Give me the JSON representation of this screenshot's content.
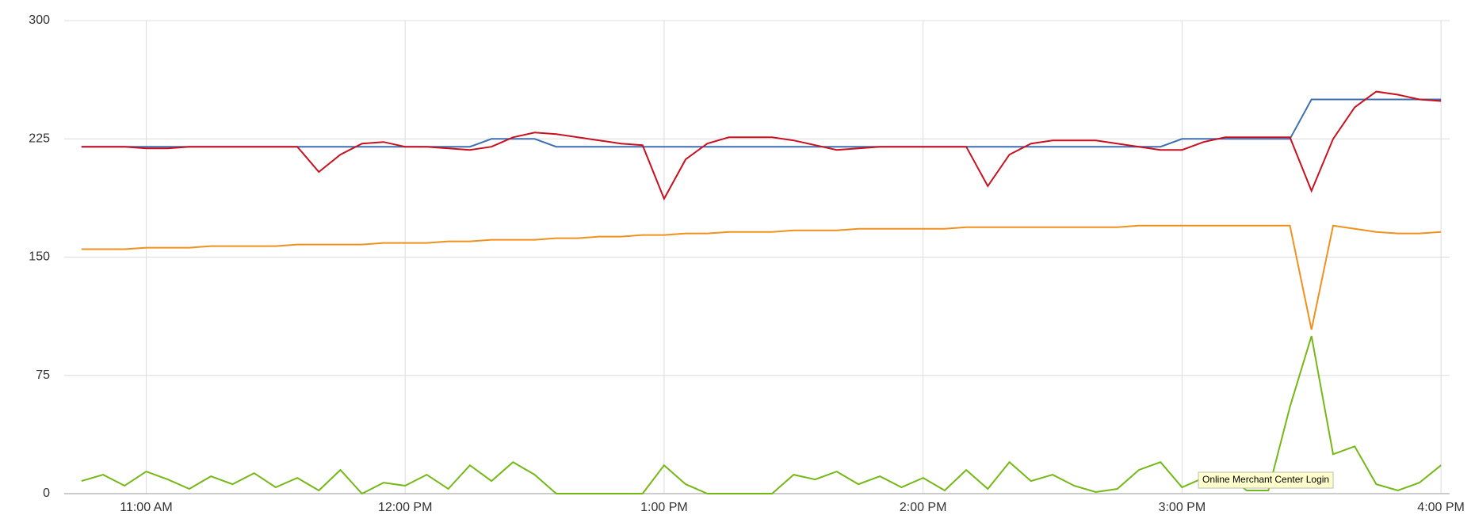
{
  "chart_data": {
    "type": "line",
    "annotation": "Online Merchant Center Login",
    "x": [
      645,
      650,
      655,
      660,
      665,
      670,
      675,
      680,
      685,
      690,
      695,
      700,
      705,
      710,
      715,
      720,
      725,
      730,
      735,
      740,
      745,
      750,
      755,
      760,
      765,
      770,
      775,
      780,
      785,
      790,
      795,
      800,
      805,
      810,
      815,
      820,
      825,
      830,
      835,
      840,
      845,
      850,
      855,
      860,
      865,
      870,
      875,
      880,
      885,
      890,
      895,
      900,
      905,
      910,
      915,
      920,
      925,
      930,
      935,
      940,
      945,
      950,
      955,
      960
    ],
    "series": [
      {
        "color": "#3d6fb0",
        "values": [
          220,
          220,
          220,
          220,
          220,
          220,
          220,
          220,
          220,
          220,
          220,
          220,
          220,
          220,
          220,
          220,
          220,
          220,
          220,
          225,
          225,
          225,
          220,
          220,
          220,
          220,
          220,
          220,
          220,
          220,
          220,
          220,
          220,
          220,
          220,
          220,
          220,
          220,
          220,
          220,
          220,
          220,
          220,
          220,
          220,
          220,
          220,
          220,
          220,
          220,
          220,
          225,
          225,
          225,
          225,
          225,
          225,
          250,
          250,
          250,
          250,
          250,
          250,
          250
        ]
      },
      {
        "color": "#c8101e",
        "values": [
          220,
          220,
          220,
          219,
          219,
          220,
          220,
          220,
          220,
          220,
          220,
          204,
          215,
          222,
          223,
          220,
          220,
          219,
          218,
          220,
          226,
          229,
          228,
          226,
          224,
          222,
          221,
          187,
          212,
          222,
          226,
          226,
          226,
          224,
          221,
          218,
          219,
          220,
          220,
          220,
          220,
          220,
          195,
          215,
          222,
          224,
          224,
          224,
          222,
          220,
          218,
          218,
          223,
          226,
          226,
          226,
          226,
          192,
          225,
          245,
          255,
          253,
          250,
          249
        ]
      },
      {
        "color": "#f0901e",
        "values": [
          155,
          155,
          155,
          156,
          156,
          156,
          157,
          157,
          157,
          157,
          158,
          158,
          158,
          158,
          159,
          159,
          159,
          160,
          160,
          161,
          161,
          161,
          162,
          162,
          163,
          163,
          164,
          164,
          165,
          165,
          166,
          166,
          166,
          167,
          167,
          167,
          168,
          168,
          168,
          168,
          168,
          169,
          169,
          169,
          169,
          169,
          169,
          169,
          169,
          170,
          170,
          170,
          170,
          170,
          170,
          170,
          170,
          104,
          170,
          168,
          166,
          165,
          165,
          166
        ]
      },
      {
        "color": "#74b816",
        "values": [
          8,
          12,
          5,
          14,
          9,
          3,
          11,
          6,
          13,
          4,
          10,
          2,
          15,
          0,
          7,
          5,
          12,
          3,
          18,
          8,
          20,
          12,
          0,
          0,
          0,
          0,
          0,
          18,
          6,
          0,
          0,
          0,
          0,
          12,
          9,
          14,
          6,
          11,
          4,
          10,
          2,
          15,
          3,
          20,
          8,
          12,
          5,
          1,
          3,
          15,
          20,
          4,
          10,
          12,
          2,
          2,
          55,
          100,
          25,
          30,
          6,
          2,
          7,
          18
        ]
      }
    ],
    "xlim": [
      641,
      962
    ],
    "xticks": [
      {
        "value": 660,
        "label": "11:00 AM"
      },
      {
        "value": 720,
        "label": "12:00 PM"
      },
      {
        "value": 780,
        "label": "1:00 PM"
      },
      {
        "value": 840,
        "label": "2:00 PM"
      },
      {
        "value": 900,
        "label": "3:00 PM"
      },
      {
        "value": 960,
        "label": "4:00 PM"
      }
    ],
    "ylim": [
      0,
      300
    ],
    "yticks": [
      0,
      75,
      150,
      225,
      300
    ],
    "grid": true
  }
}
